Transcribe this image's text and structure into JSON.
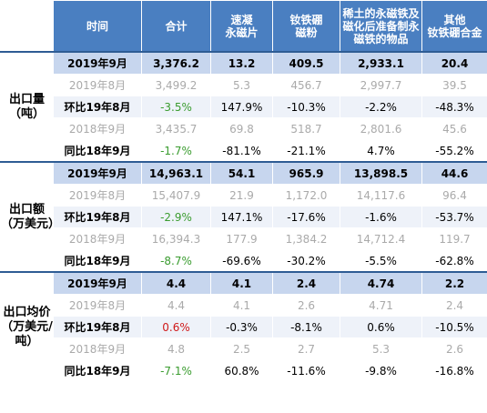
{
  "header": {
    "col1": "时间",
    "col2": "合计",
    "col3": [
      "速凝",
      "永磁片"
    ],
    "col4": [
      "钕铁硼",
      "磁粉"
    ],
    "col5": [
      "稀土的永磁铁及",
      "磁化后准备制永",
      "磁铁的物品"
    ],
    "col6": [
      "其他",
      "钕铁硼合金"
    ]
  },
  "groups": [
    {
      "label": [
        "出口量",
        "（吨）"
      ],
      "rows": [
        {
          "label": "2019年9月",
          "values": [
            "3,376.2",
            "13.2",
            "409.5",
            "2,933.1",
            "20.4"
          ]
        },
        {
          "label": "2019年8月",
          "values": [
            "3,499.2",
            "5.3",
            "456.7",
            "2,997.7",
            "39.5"
          ]
        },
        {
          "label": "环比19年8月",
          "values": [
            "-3.5%",
            "147.9%",
            "-10.3%",
            "-2.2%",
            "-48.3%"
          ]
        },
        {
          "label": "2018年9月",
          "values": [
            "3,435.7",
            "69.8",
            "518.7",
            "2,801.6",
            "45.6"
          ]
        },
        {
          "label": "同比18年9月",
          "values": [
            "-1.7%",
            "-81.1%",
            "-21.1%",
            "4.7%",
            "-55.2%"
          ]
        }
      ]
    },
    {
      "label": [
        "出口额",
        "（万美元）"
      ],
      "rows": [
        {
          "label": "2019年9月",
          "values": [
            "14,963.1",
            "54.1",
            "965.9",
            "13,898.5",
            "44.6"
          ]
        },
        {
          "label": "2019年8月",
          "values": [
            "15,407.9",
            "21.9",
            "1,172.0",
            "14,117.6",
            "96.4"
          ]
        },
        {
          "label": "环比19年8月",
          "values": [
            "-2.9%",
            "147.1%",
            "-17.6%",
            "-1.6%",
            "-53.7%"
          ]
        },
        {
          "label": "2018年9月",
          "values": [
            "16,394.3",
            "177.9",
            "1,384.2",
            "14,712.4",
            "119.7"
          ]
        },
        {
          "label": "同比18年9月",
          "values": [
            "-8.7%",
            "-69.6%",
            "-30.2%",
            "-5.5%",
            "-62.8%"
          ]
        }
      ]
    },
    {
      "label": [
        "出口均价",
        "（万美元/",
        "吨）"
      ],
      "rows": [
        {
          "label": "2019年9月",
          "values": [
            "4.4",
            "4.1",
            "2.4",
            "4.74",
            "2.2"
          ]
        },
        {
          "label": "2019年8月",
          "values": [
            "4.4",
            "4.1",
            "2.6",
            "4.71",
            "2.4"
          ]
        },
        {
          "label": "环比19年8月",
          "values": [
            "0.6%",
            "-0.3%",
            "-8.1%",
            "0.6%",
            "-10.5%"
          ]
        },
        {
          "label": "2018年9月",
          "values": [
            "4.8",
            "2.5",
            "2.7",
            "5.3",
            "2.6"
          ]
        },
        {
          "label": "同比18年9月",
          "values": [
            "-7.1%",
            "60.8%",
            "-11.6%",
            "-9.8%",
            "-16.8%"
          ]
        }
      ]
    }
  ],
  "colors": {
    "header_bg": "#4a7fc1",
    "current_row_bg": "#c7d6ee",
    "muted_text": "#aaaaaa",
    "negative_change_total": "#3a9c2f",
    "positive_change_total": "#d0191a"
  }
}
